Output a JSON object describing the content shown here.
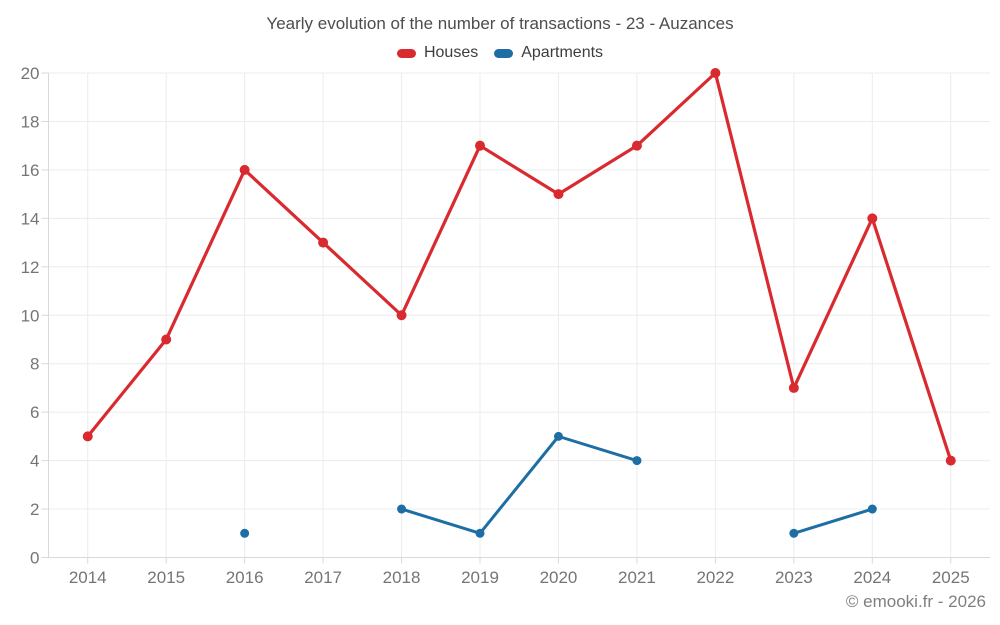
{
  "title": "Yearly evolution of the number of transactions - 23 - Auzances",
  "footer": "© emooki.fr - 2026",
  "chart_data": {
    "type": "line",
    "title": "Yearly evolution of the number of transactions - 23 - Auzances",
    "categories": [
      "2014",
      "2015",
      "2016",
      "2017",
      "2018",
      "2019",
      "2020",
      "2021",
      "2022",
      "2023",
      "2024",
      "2025"
    ],
    "series": [
      {
        "name": "Houses",
        "color": "#d92a2f",
        "marker_radius": 5,
        "line_width": 3.2,
        "values": [
          5,
          9,
          16,
          13,
          10,
          17,
          15,
          17,
          20,
          7,
          14,
          4
        ]
      },
      {
        "name": "Apartments",
        "color": "#1c6ea4",
        "marker_radius": 4.5,
        "line_width": 3,
        "values": [
          null,
          null,
          1,
          null,
          2,
          1,
          5,
          4,
          null,
          1,
          2,
          null
        ]
      }
    ],
    "xlabel": "",
    "ylabel": "",
    "ylim": [
      0,
      20
    ],
    "y_ticks": [
      0,
      2,
      4,
      6,
      8,
      10,
      12,
      14,
      16,
      18,
      20
    ],
    "grid": true,
    "legend_position": "top"
  },
  "colors": {
    "grid": "#ececec",
    "axis": "#d9d9d9",
    "tick_text": "#757575"
  }
}
